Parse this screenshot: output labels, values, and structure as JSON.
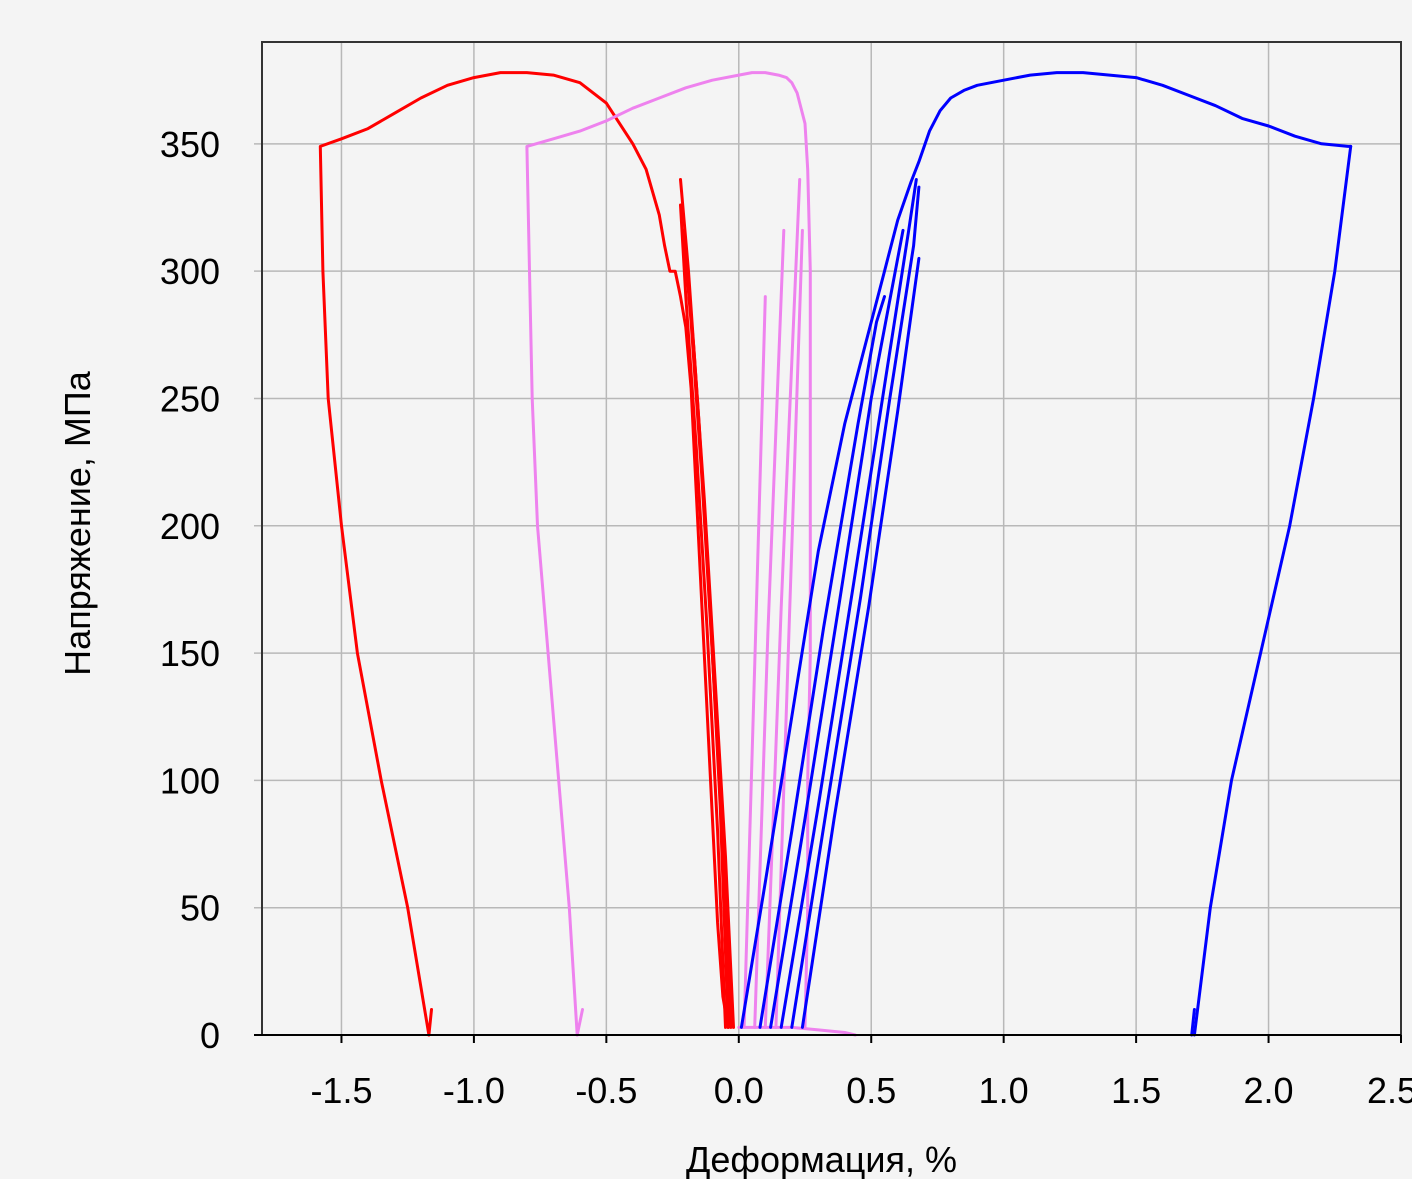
{
  "chart_data": {
    "type": "line",
    "title": "",
    "xlabel": "Деформация, %",
    "ylabel": "Напряжение, МПа",
    "xlim": [
      -1.8,
      2.5
    ],
    "ylim": [
      0,
      390
    ],
    "grid": true,
    "legend": "none",
    "x_ticks": [
      -1.5,
      -1.0,
      -0.5,
      0.0,
      0.5,
      1.0,
      1.5,
      2.0,
      2.5
    ],
    "x_tick_labels": [
      "-1.5",
      "-1.0",
      "-0.5",
      "0.0",
      "0.5",
      "1.0",
      "1.5",
      "2.0",
      "2.5"
    ],
    "y_ticks": [
      0,
      50,
      100,
      150,
      200,
      250,
      300,
      350
    ],
    "y_tick_labels": [
      "0",
      "50",
      "100",
      "150",
      "200",
      "250",
      "300",
      "350"
    ],
    "series": [
      {
        "color": "#ff0000",
        "x": [
          -1.17,
          -1.25,
          -1.35,
          -1.44,
          -1.5,
          -1.55,
          -1.57,
          -1.58,
          -1.5,
          -1.4,
          -1.3,
          -1.2,
          -1.1,
          -1.0,
          -0.9,
          -0.8,
          -0.7,
          -0.6,
          -0.5,
          -0.4,
          -0.35,
          -0.3,
          -0.28,
          -0.26,
          -0.24,
          -0.22,
          -0.2,
          -0.18,
          -0.16,
          -0.14,
          -0.12,
          -0.1,
          -0.08,
          -0.06,
          -0.04
        ],
        "y": [
          0,
          50,
          100,
          150,
          200,
          250,
          300,
          349,
          352,
          356,
          362,
          368,
          373,
          376,
          378,
          378,
          377,
          374,
          366,
          350,
          340,
          322,
          310,
          300,
          300,
          290,
          278,
          254,
          212,
          170,
          128,
          86,
          44,
          15,
          3
        ]
      },
      {
        "color": "#ff0000",
        "x": [
          -0.22,
          -0.19,
          -0.15,
          -0.11,
          -0.07,
          -0.04
        ],
        "y": [
          336,
          300,
          240,
          170,
          90,
          3
        ]
      },
      {
        "color": "#ff0000",
        "x": [
          -0.22,
          -0.2,
          -0.16,
          -0.12,
          -0.08,
          -0.05
        ],
        "y": [
          326,
          290,
          230,
          160,
          80,
          3
        ]
      },
      {
        "color": "#ff0000",
        "x": [
          -0.21,
          -0.18,
          -0.14,
          -0.1,
          -0.06,
          -0.03
        ],
        "y": [
          316,
          280,
          220,
          150,
          75,
          3
        ]
      },
      {
        "color": "#ff0000",
        "x": [
          -0.2,
          -0.17,
          -0.13,
          -0.09,
          -0.05,
          -0.02
        ],
        "y": [
          306,
          270,
          210,
          140,
          70,
          3
        ]
      },
      {
        "color": "#ff0000",
        "x": [
          -1.17,
          -1.16
        ],
        "y": [
          0,
          10
        ]
      },
      {
        "color": "#ee82ee",
        "x": [
          -0.61,
          -0.64,
          -0.68,
          -0.72,
          -0.76,
          -0.78,
          -0.79,
          -0.8,
          -0.7,
          -0.6,
          -0.5,
          -0.4,
          -0.3,
          -0.2,
          -0.1,
          0.0,
          0.05,
          0.1,
          0.15,
          0.18,
          0.2,
          0.22,
          0.25,
          0.26,
          0.27,
          0.27
        ],
        "y": [
          0,
          50,
          100,
          150,
          200,
          250,
          300,
          349,
          352,
          355,
          359,
          364,
          368,
          372,
          375,
          377,
          378,
          378,
          377,
          376,
          374,
          370,
          358,
          340,
          300,
          200
        ]
      },
      {
        "color": "#ee82ee",
        "x": [
          0.27,
          0.27,
          0.26,
          0.26,
          0.25
        ],
        "y": [
          200,
          150,
          100,
          50,
          3
        ]
      },
      {
        "color": "#ee82ee",
        "x": [
          0.02,
          0.06,
          0.1
        ],
        "y": [
          3,
          145,
          290
        ]
      },
      {
        "color": "#ee82ee",
        "x": [
          0.06,
          0.11,
          0.17
        ],
        "y": [
          3,
          158,
          316
        ]
      },
      {
        "color": "#ee82ee",
        "x": [
          0.1,
          0.16,
          0.23
        ],
        "y": [
          3,
          168,
          336
        ]
      },
      {
        "color": "#ee82ee",
        "x": [
          0.14,
          0.19,
          0.24
        ],
        "y": [
          3,
          160,
          316
        ]
      },
      {
        "color": "#ee82ee",
        "x": [
          0.0,
          0.1,
          0.2,
          0.3,
          0.4,
          0.44
        ],
        "y": [
          3,
          3,
          3,
          2,
          1,
          0
        ]
      },
      {
        "color": "#ee82ee",
        "x": [
          -0.61,
          -0.59
        ],
        "y": [
          0,
          10
        ]
      },
      {
        "color": "#0000ff",
        "x": [
          0.01,
          0.1,
          0.2,
          0.3,
          0.4,
          0.5,
          0.55,
          0.6,
          0.65,
          0.68,
          0.72,
          0.76,
          0.8,
          0.85,
          0.9,
          1.0,
          1.1,
          1.2,
          1.3,
          1.4,
          1.5,
          1.6,
          1.7,
          1.8,
          1.9,
          2.0,
          2.1,
          2.2,
          2.3,
          2.31
        ],
        "y": [
          3,
          60,
          125,
          190,
          240,
          280,
          300,
          320,
          335,
          343,
          355,
          363,
          368,
          371,
          373,
          375,
          377,
          378,
          378,
          377,
          376,
          373,
          369,
          365,
          360,
          357,
          353,
          350,
          349,
          349
        ]
      },
      {
        "color": "#0000ff",
        "x": [
          2.31,
          2.25,
          2.17,
          2.08,
          1.97,
          1.86,
          1.78,
          1.72
        ],
        "y": [
          349,
          300,
          250,
          200,
          150,
          100,
          50,
          0
        ]
      },
      {
        "color": "#0000ff",
        "x": [
          0.08,
          0.2,
          0.32,
          0.45,
          0.52,
          0.55
        ],
        "y": [
          3,
          80,
          160,
          240,
          280,
          290
        ]
      },
      {
        "color": "#0000ff",
        "x": [
          0.12,
          0.25,
          0.38,
          0.5,
          0.6,
          0.62
        ],
        "y": [
          3,
          85,
          170,
          250,
          305,
          316
        ]
      },
      {
        "color": "#0000ff",
        "x": [
          0.16,
          0.3,
          0.43,
          0.55,
          0.64,
          0.67
        ],
        "y": [
          3,
          90,
          175,
          255,
          315,
          336
        ]
      },
      {
        "color": "#0000ff",
        "x": [
          0.2,
          0.33,
          0.46,
          0.57,
          0.66,
          0.68
        ],
        "y": [
          3,
          88,
          172,
          250,
          310,
          333
        ]
      },
      {
        "color": "#0000ff",
        "x": [
          0.24,
          0.36,
          0.49,
          0.6,
          0.68
        ],
        "y": [
          3,
          85,
          168,
          245,
          305
        ]
      },
      {
        "color": "#0000ff",
        "x": [
          1.71,
          1.72
        ],
        "y": [
          0,
          10
        ]
      }
    ]
  }
}
